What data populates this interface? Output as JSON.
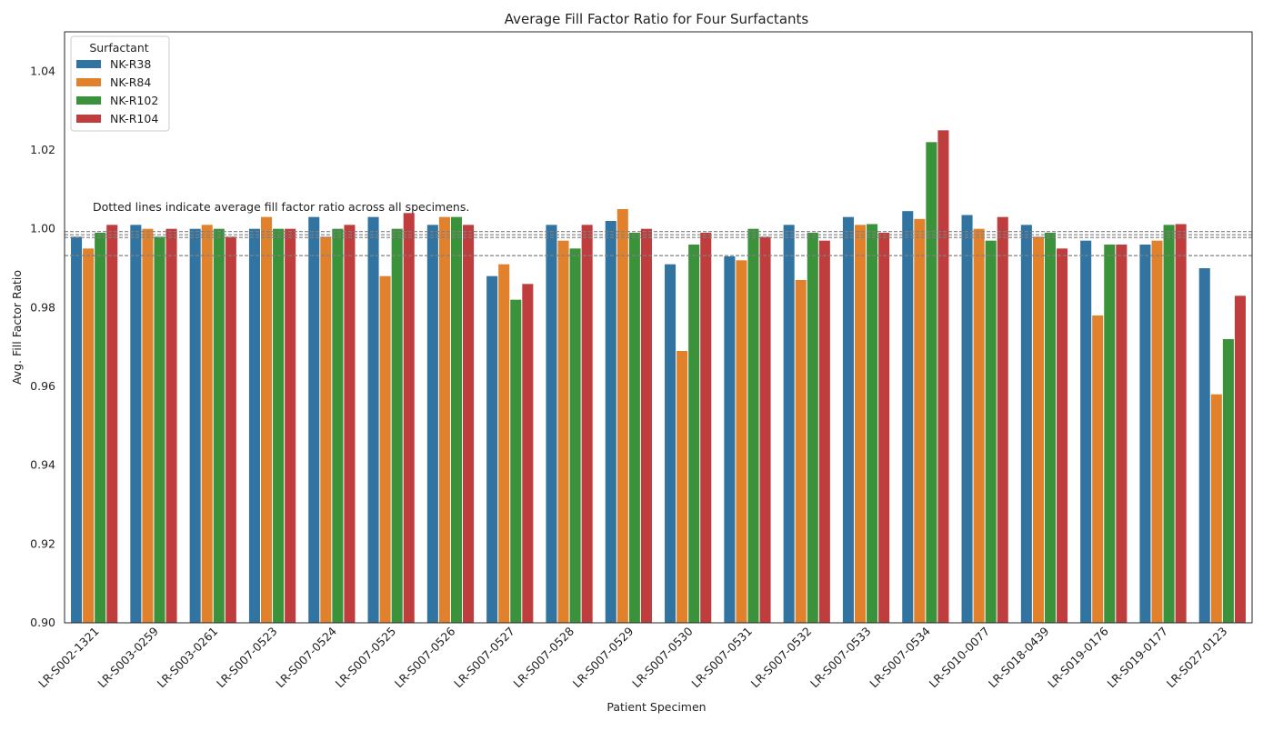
{
  "chart_data": {
    "type": "bar",
    "title": "Average Fill Factor Ratio for Four Surfactants",
    "xlabel": "Patient Specimen",
    "ylabel": "Avg. Fill Factor Ratio",
    "ylim": [
      0.9,
      1.05
    ],
    "yticks": [
      0.9,
      0.92,
      0.94,
      0.96,
      0.98,
      1.0,
      1.02,
      1.04
    ],
    "ytick_labels": [
      "0.90",
      "0.92",
      "0.94",
      "0.96",
      "0.98",
      "1.00",
      "1.02",
      "1.04"
    ],
    "grid": false,
    "legend": {
      "title": "Surfactant",
      "position": "top-left"
    },
    "annotation": "Dotted lines indicate average fill factor ratio across all specimens.",
    "reference_lines": [
      0.9993,
      0.9985,
      0.9978,
      0.9932
    ],
    "categories": [
      "LR-S002-1321",
      "LR-S003-0259",
      "LR-S003-0261",
      "LR-S007-0523",
      "LR-S007-0524",
      "LR-S007-0525",
      "LR-S007-0526",
      "LR-S007-0527",
      "LR-S007-0528",
      "LR-S007-0529",
      "LR-S007-0530",
      "LR-S007-0531",
      "LR-S007-0532",
      "LR-S007-0533",
      "LR-S007-0534",
      "LR-S010-0077",
      "LR-S018-0439",
      "LR-S019-0176",
      "LR-S019-0177",
      "LR-S027-0123"
    ],
    "series": [
      {
        "name": "NK-R38",
        "color": "#3274a1",
        "values": [
          0.998,
          1.001,
          1.0,
          1.0,
          1.003,
          1.003,
          1.001,
          0.988,
          1.001,
          1.002,
          0.991,
          0.993,
          1.001,
          1.003,
          1.0045,
          1.0035,
          1.001,
          0.997,
          0.996,
          0.99
        ]
      },
      {
        "name": "NK-R84",
        "color": "#e1812c",
        "values": [
          0.995,
          1.0,
          1.001,
          1.003,
          0.998,
          0.988,
          1.003,
          0.991,
          0.997,
          1.005,
          0.969,
          0.992,
          0.987,
          1.001,
          1.0025,
          1.0,
          0.998,
          0.978,
          0.997,
          0.958
        ]
      },
      {
        "name": "NK-R102",
        "color": "#3a923a",
        "values": [
          0.999,
          0.998,
          1.0,
          1.0,
          1.0,
          1.0,
          1.003,
          0.982,
          0.995,
          0.999,
          0.996,
          1.0,
          0.999,
          1.0012,
          1.022,
          0.997,
          0.999,
          0.996,
          1.001,
          0.972
        ]
      },
      {
        "name": "NK-R104",
        "color": "#c03d3e",
        "values": [
          1.001,
          1.0,
          0.998,
          1.0,
          1.001,
          1.004,
          1.001,
          0.986,
          1.001,
          1.0,
          0.999,
          0.998,
          0.997,
          0.999,
          1.025,
          1.003,
          0.995,
          0.996,
          1.0012,
          0.983
        ]
      }
    ]
  }
}
